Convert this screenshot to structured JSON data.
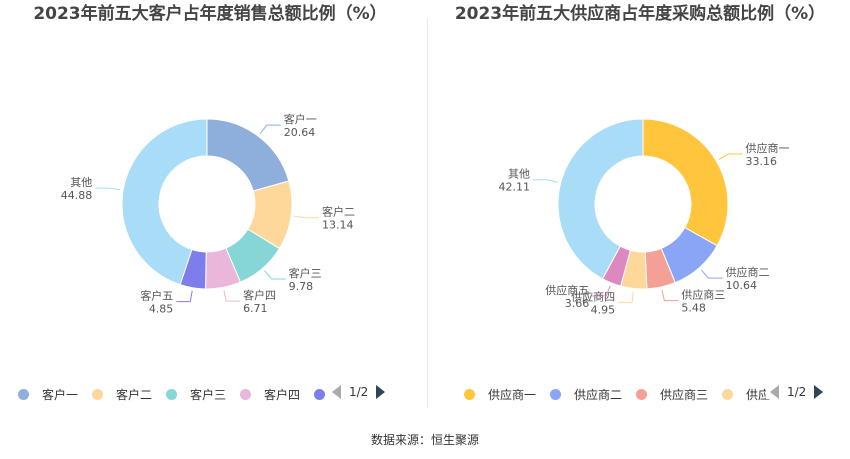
{
  "footer": "数据来源：恒生聚源",
  "chart_data": [
    {
      "type": "pie",
      "title": "2023年前五大客户占年度销售总额比例（%）",
      "categories": [
        "客户一",
        "客户二",
        "客户三",
        "客户四",
        "客户五",
        "其他"
      ],
      "values": [
        20.64,
        13.14,
        9.78,
        6.71,
        4.85,
        44.88
      ],
      "value_labels": [
        "20.64",
        "13.14",
        "9.78",
        "6.71",
        "4.85",
        "44.88"
      ],
      "colors": [
        "#8eaedc",
        "#fed89a",
        "#86d6d7",
        "#e8b7d9",
        "#7d7dec",
        "#a9dcf7"
      ],
      "legend_visible": [
        "客户一",
        "客户二",
        "客户三",
        "客户四",
        ""
      ],
      "legend_placement": "bottom",
      "page": "1/2"
    },
    {
      "type": "pie",
      "title": "2023年前五大供应商占年度采购总额比例（%）",
      "categories": [
        "供应商一",
        "供应商二",
        "供应商三",
        "供应商四",
        "供应商五",
        "其他"
      ],
      "values": [
        33.16,
        10.64,
        5.48,
        4.95,
        3.66,
        42.11
      ],
      "value_labels": [
        "33.16",
        "10.64",
        "5.48",
        "4.95",
        "3.66",
        "42.11"
      ],
      "colors": [
        "#ffc63d",
        "#8aa5f5",
        "#f4a096",
        "#fed89a",
        "#dd88c0",
        "#a9dcf7"
      ],
      "legend_visible": [
        "供应商一",
        "供应商二",
        "供应商三",
        "供应"
      ],
      "legend_placement": "bottom",
      "page": "1/2"
    }
  ]
}
